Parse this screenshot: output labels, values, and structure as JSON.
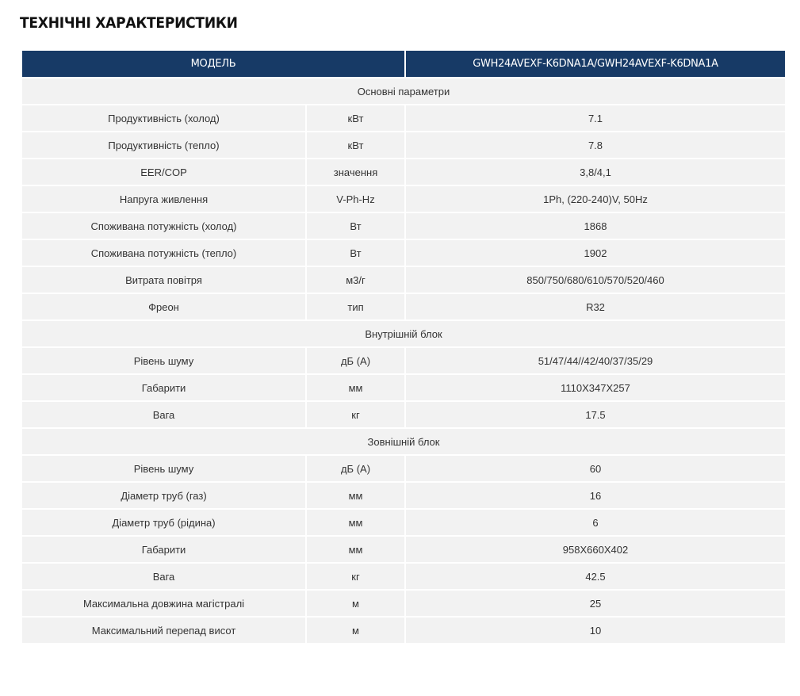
{
  "title": "ТЕХНІЧНІ ХАРАКТЕРИСТИКИ",
  "table": {
    "header": [
      "МОДЕЛЬ",
      "GWH24AVEXF-K6DNA1A/GWH24AVEXF-K6DNA1A"
    ],
    "sections": [
      {
        "title": "Основні параметри",
        "rows": [
          [
            "Продуктивність (холод)",
            "кВт",
            "7.1"
          ],
          [
            "Продуктивність (тепло)",
            "кВт",
            "7.8"
          ],
          [
            "EER/COP",
            "значення",
            "3,8/4,1"
          ],
          [
            "Напруга живлення",
            "V-Ph-Hz",
            "1Ph, (220-240)V, 50Hz"
          ],
          [
            "Споживана потужність (холод)",
            "Вт",
            "1868"
          ],
          [
            "Споживана потужність (тепло)",
            "Вт",
            "1902"
          ],
          [
            "Витрата повітря",
            "м3/г",
            "850/750/680/610/570/520/460"
          ],
          [
            "Фреон",
            "тип",
            "R32"
          ]
        ]
      },
      {
        "title": "Внутрішній блок",
        "rows": [
          [
            "Рівень шуму",
            "дБ (А)",
            "51/47/44//42/40/37/35/29"
          ],
          [
            "Габарити",
            "мм",
            "1110X347X257"
          ],
          [
            "Вага",
            "кг",
            "17.5"
          ]
        ]
      },
      {
        "title": "Зовнішній блок",
        "rows": [
          [
            "Рівень шуму",
            "дБ (А)",
            "60"
          ],
          [
            "Діаметр труб (газ)",
            "мм",
            "16"
          ],
          [
            "Діаметр труб (рідина)",
            "мм",
            "6"
          ],
          [
            "Габарити",
            "мм",
            "958X660X402"
          ],
          [
            "Вага",
            "кг",
            "42.5"
          ],
          [
            "Максимальна довжина магістралі",
            "м",
            "25"
          ],
          [
            "Максимальний перепад висот",
            "м",
            "10"
          ]
        ]
      }
    ]
  }
}
